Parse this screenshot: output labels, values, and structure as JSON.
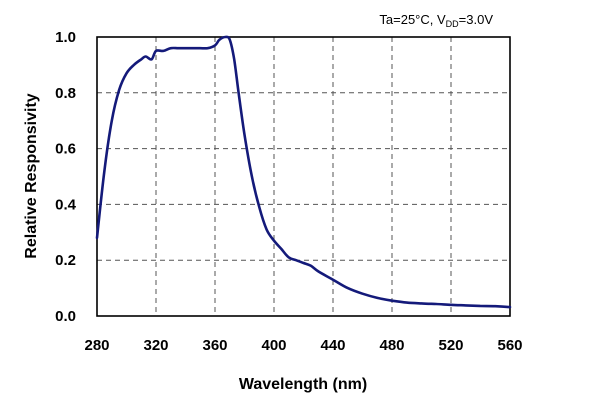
{
  "chart_data": {
    "type": "line",
    "title": "",
    "annotation": {
      "prefix": "Ta=25°C, V",
      "subscript": "DD",
      "suffix": "=3.0V"
    },
    "xlabel": "Wavelength (nm)",
    "ylabel": "Relative Responsivity",
    "xlim": [
      280,
      560
    ],
    "ylim": [
      0,
      1.0
    ],
    "x_ticks": [
      280,
      320,
      360,
      400,
      440,
      480,
      520,
      560
    ],
    "y_ticks": [
      0.0,
      0.2,
      0.4,
      0.6,
      0.8,
      1.0
    ],
    "x_tick_labels": [
      "280",
      "320",
      "360",
      "400",
      "440",
      "480",
      "520",
      "560"
    ],
    "y_tick_labels": [
      "0.0",
      "0.2",
      "0.4",
      "0.6",
      "0.8",
      "1.0"
    ],
    "grid": true,
    "line_color": "#141a7a",
    "series": [
      {
        "x": [
          280,
          285,
          290,
          295,
          300,
          305,
          310,
          313,
          317,
          320,
          325,
          330,
          335,
          340,
          345,
          350,
          355,
          360,
          363,
          367,
          370,
          373,
          376,
          380,
          385,
          390,
          395,
          400,
          405,
          410,
          415,
          420,
          425,
          430,
          440,
          450,
          460,
          470,
          480,
          490,
          500,
          510,
          520,
          530,
          540,
          550,
          560
        ],
        "y": [
          0.28,
          0.52,
          0.7,
          0.81,
          0.87,
          0.9,
          0.92,
          0.93,
          0.92,
          0.95,
          0.95,
          0.96,
          0.96,
          0.96,
          0.96,
          0.96,
          0.96,
          0.97,
          0.99,
          1.0,
          0.99,
          0.92,
          0.8,
          0.65,
          0.5,
          0.39,
          0.31,
          0.27,
          0.24,
          0.21,
          0.2,
          0.19,
          0.18,
          0.16,
          0.13,
          0.1,
          0.08,
          0.065,
          0.055,
          0.048,
          0.045,
          0.043,
          0.04,
          0.038,
          0.036,
          0.035,
          0.032
        ]
      }
    ]
  }
}
